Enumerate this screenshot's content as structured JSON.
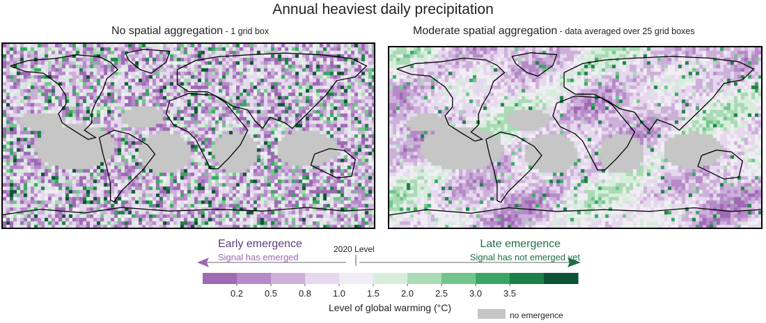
{
  "title": "Annual heaviest daily precipitation",
  "panels": [
    {
      "title_main": "No spatial aggregation",
      "title_sub": " - 1 grid box",
      "variant": "fine"
    },
    {
      "title_main": "Moderate spatial aggregation",
      "title_sub": " - data averaged over 25 grid boxes",
      "variant": "smooth"
    }
  ],
  "legend": {
    "early_label": "Early emergence",
    "early_sub": "Signal has emerged",
    "late_label": "Late emergence",
    "late_sub": "Signal has not emerged yet",
    "marker_label": "2020 Level",
    "ticks": [
      "0.2",
      "0.5",
      "0.8",
      "1.0",
      "1.5",
      "2.0",
      "2.5",
      "3.0",
      "3.5"
    ],
    "colors": [
      "#9e6ab4",
      "#b68ac8",
      "#cdb0da",
      "#e6d8ee",
      "#f1edf4",
      "#d8eedd",
      "#a9dbb4",
      "#72c68b",
      "#3aa665",
      "#1c8048",
      "#0c5433"
    ],
    "axis_label": "Level of global warming (°C)",
    "no_emergence_label": "no emergence",
    "no_emergence_color": "#c6c6c6",
    "early_color": "#9a6ab2",
    "late_color": "#1e6e45"
  }
}
